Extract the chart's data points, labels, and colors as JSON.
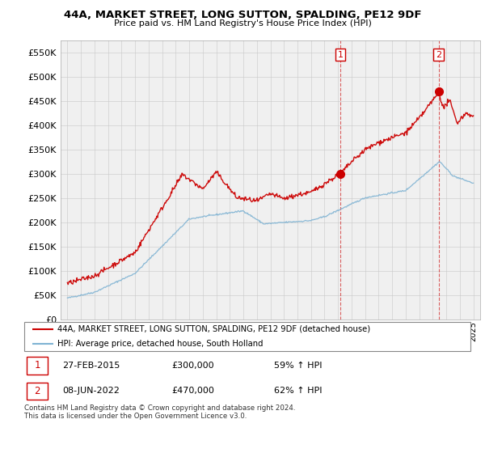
{
  "title": "44A, MARKET STREET, LONG SUTTON, SPALDING, PE12 9DF",
  "subtitle": "Price paid vs. HM Land Registry's House Price Index (HPI)",
  "legend_line1": "44A, MARKET STREET, LONG SUTTON, SPALDING, PE12 9DF (detached house)",
  "legend_line2": "HPI: Average price, detached house, South Holland",
  "footnote": "Contains HM Land Registry data © Crown copyright and database right 2024.\nThis data is licensed under the Open Government Licence v3.0.",
  "sale1_label": "1",
  "sale1_date": "27-FEB-2015",
  "sale1_price": "£300,000",
  "sale1_hpi": "59% ↑ HPI",
  "sale2_label": "2",
  "sale2_date": "08-JUN-2022",
  "sale2_price": "£470,000",
  "sale2_hpi": "62% ↑ HPI",
  "red_color": "#cc0000",
  "blue_color": "#7fb3d3",
  "marker1_x": 2015.16,
  "marker1_y": 300000,
  "marker2_x": 2022.44,
  "marker2_y": 470000,
  "ylim": [
    0,
    575000
  ],
  "yticks": [
    0,
    50000,
    100000,
    150000,
    200000,
    250000,
    300000,
    350000,
    400000,
    450000,
    500000,
    550000
  ],
  "xlim_start": 1994.5,
  "xlim_end": 2025.5,
  "bg_color": "#f0f0f0"
}
